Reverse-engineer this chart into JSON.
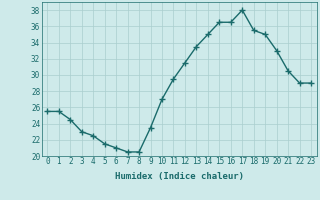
{
  "x": [
    0,
    1,
    2,
    3,
    4,
    5,
    6,
    7,
    8,
    9,
    10,
    11,
    12,
    13,
    14,
    15,
    16,
    17,
    18,
    19,
    20,
    21,
    22,
    23
  ],
  "y": [
    25.5,
    25.5,
    24.5,
    23.0,
    22.5,
    21.5,
    21.0,
    20.5,
    20.5,
    23.5,
    27.0,
    29.5,
    31.5,
    33.5,
    35.0,
    36.5,
    36.5,
    38.0,
    35.5,
    35.0,
    33.0,
    30.5,
    29.0,
    29.0
  ],
  "line_color": "#1a6b6b",
  "marker": "+",
  "marker_size": 4,
  "bg_color": "#ceeaea",
  "grid_color": "#aacece",
  "xlabel": "Humidex (Indice chaleur)",
  "xlim": [
    -0.5,
    23.5
  ],
  "ylim": [
    20,
    39
  ],
  "yticks": [
    20,
    22,
    24,
    26,
    28,
    30,
    32,
    34,
    36,
    38
  ],
  "xticks": [
    0,
    1,
    2,
    3,
    4,
    5,
    6,
    7,
    8,
    9,
    10,
    11,
    12,
    13,
    14,
    15,
    16,
    17,
    18,
    19,
    20,
    21,
    22,
    23
  ],
  "tick_label_fontsize": 5.5,
  "xlabel_fontsize": 6.5,
  "line_width": 1.0
}
